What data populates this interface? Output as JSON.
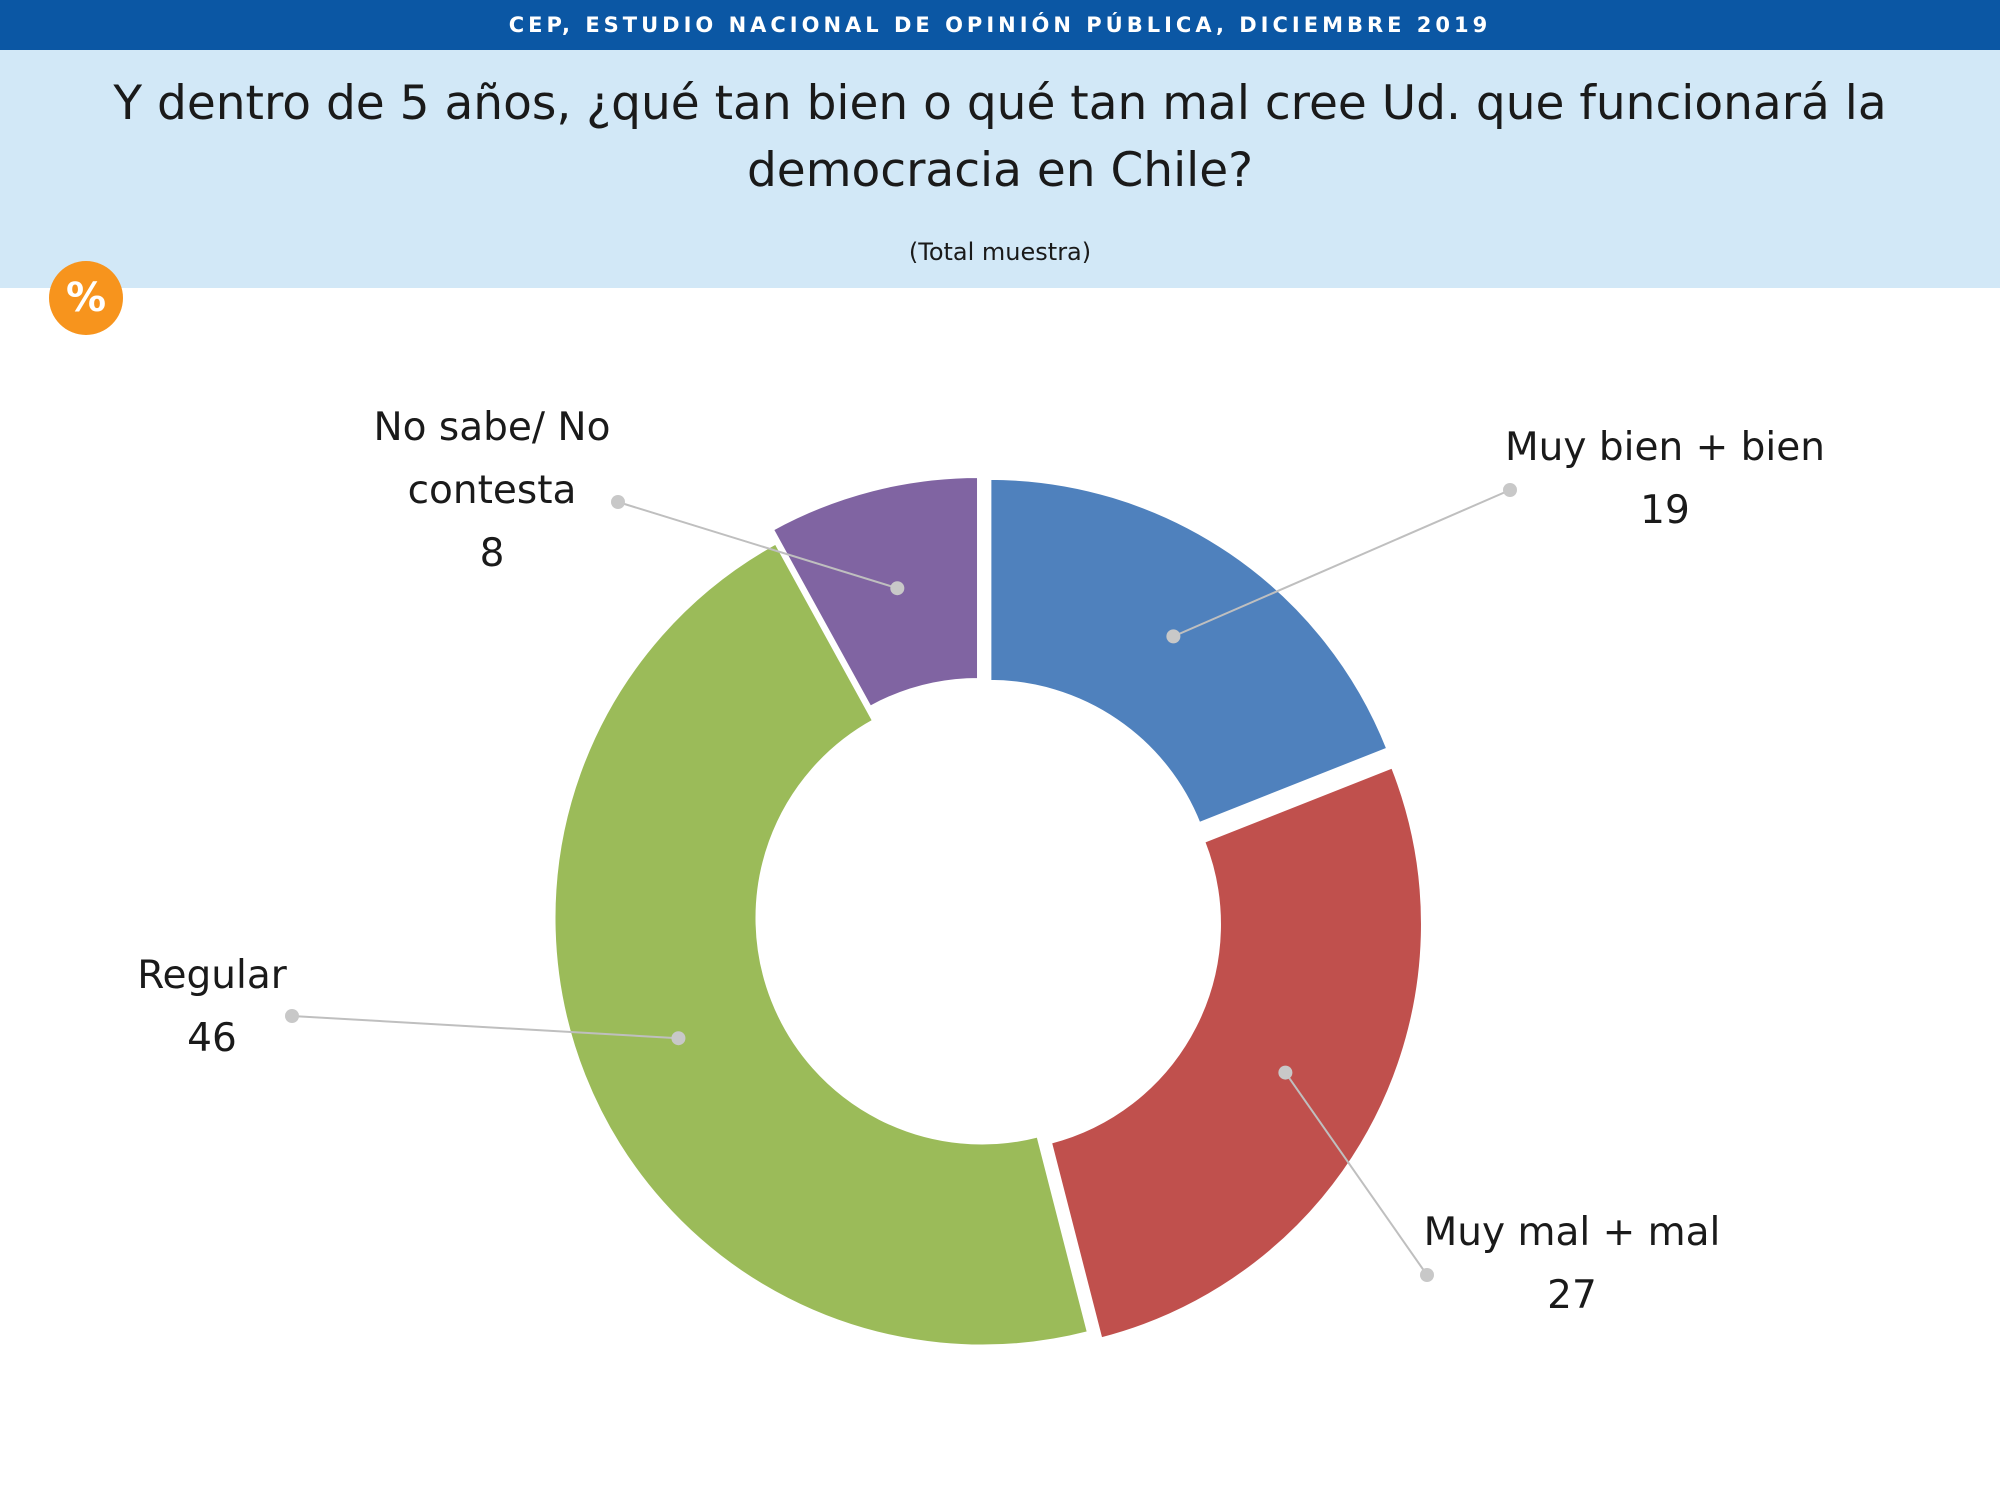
{
  "header": {
    "banner": "CEP, ESTUDIO NACIONAL DE OPINIÓN PÚBLICA, DICIEMBRE 2019",
    "title": "Y dentro de 5 años, ¿qué tan bien o qué tan mal cree Ud. que funcionará la democracia en Chile?",
    "subtitle": "(Total muestra)",
    "badge": "%"
  },
  "colors": {
    "banner": "#0b57a4",
    "panel": "#d2e8f7",
    "badge": "#f7941d"
  },
  "chart_data": {
    "type": "pie",
    "donut": true,
    "title": "Y dentro de 5 años, ¿qué tan bien o qué tan mal cree Ud. que funcionará la democracia en Chile?",
    "categories": [
      "Muy bien + bien",
      "Muy mal + mal",
      "Regular",
      "No sabe/ No contesta"
    ],
    "values": [
      19,
      27,
      46,
      8
    ],
    "colors": [
      "#4f81bd",
      "#c0504d",
      "#9bbb59",
      "#8064a2"
    ],
    "label_lines": [
      {
        "slice": 0,
        "lines": [
          "Muy bien + bien"
        ],
        "value": "19"
      },
      {
        "slice": 1,
        "lines": [
          "Muy mal + mal"
        ],
        "value": "27"
      },
      {
        "slice": 2,
        "lines": [
          "Regular"
        ],
        "value": "46"
      },
      {
        "slice": 3,
        "lines": [
          "No sabe/ No",
          "contesta"
        ],
        "value": "8"
      }
    ]
  }
}
